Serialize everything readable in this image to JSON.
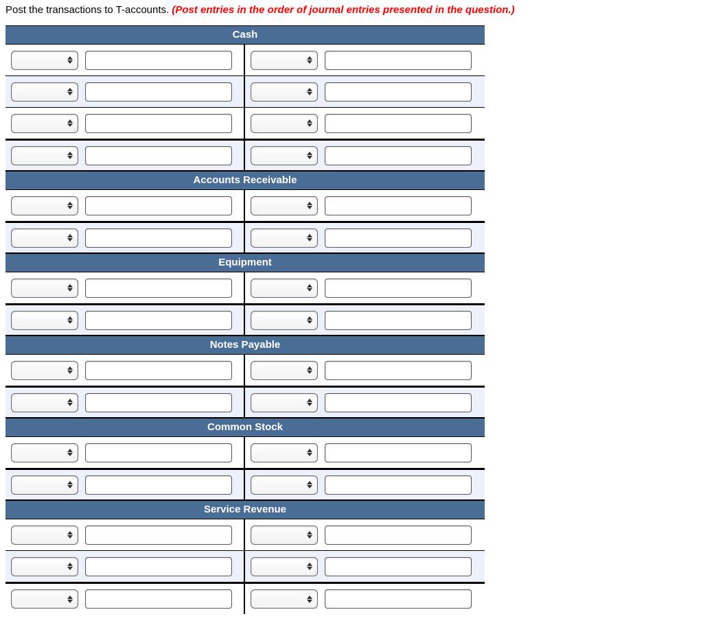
{
  "instruction": {
    "text_plain": "Post the transactions to T-accounts. ",
    "text_emph": "(Post entries in the order of journal entries presented in the question.)"
  },
  "accounts": [
    {
      "name": "Cash",
      "rows": 3,
      "summary": true
    },
    {
      "name": "Accounts Receivable",
      "rows": 1,
      "summary": true
    },
    {
      "name": "Equipment",
      "rows": 1,
      "summary": true
    },
    {
      "name": "Notes Payable",
      "rows": 1,
      "summary": true
    },
    {
      "name": "Common Stock",
      "rows": 1,
      "summary": true
    },
    {
      "name": "Service Revenue",
      "rows": 2,
      "summary": true
    }
  ],
  "colors": {
    "header_bg": "#4a6d95",
    "header_fg": "#ffffff",
    "alt_row_bg": "#ecf1fb",
    "emph_color": "#ff0000"
  }
}
